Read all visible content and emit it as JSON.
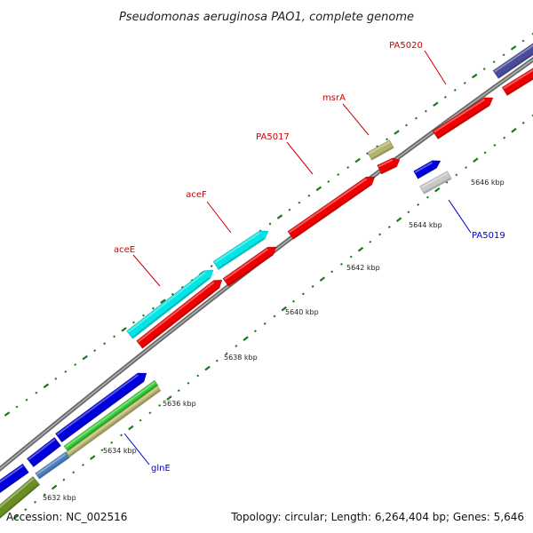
{
  "title": "Pseudomonas aeruginosa PAO1, complete genome",
  "accession": "Accession: NC_002516",
  "summary": "Topology: circular; Length: 6,264,404 bp; Genes: 5,646",
  "ticks": [
    "5632 kbp",
    "5634 kbp",
    "5636 kbp",
    "5638 kbp",
    "5640 kbp",
    "5642 kbp",
    "5644 kbp",
    "5646 kbp"
  ],
  "gene_labels": [
    {
      "name": "aceE",
      "color": "#cc0000"
    },
    {
      "name": "aceF",
      "color": "#cc0000"
    },
    {
      "name": "PA5017",
      "color": "#cc0000"
    },
    {
      "name": "msrA",
      "color": "#cc0000"
    },
    {
      "name": "PA5020",
      "color": "#cc0000"
    },
    {
      "name": "PA5019",
      "color": "#0000cc"
    },
    {
      "name": "glnE",
      "color": "#0000cc"
    }
  ],
  "colors": {
    "backbone": "#7a7a7a",
    "cds_red": "#ee0000",
    "cds_cyan": "#00e5e5",
    "cds_blue": "#0000dd",
    "cds_khaki": "#b5b36b",
    "cds_green": "#33cc33",
    "cds_olive": "#6b8e23",
    "cds_steel": "#4a7fbf",
    "cds_slate": "#4b4b9b",
    "cds_grey": "#c8c8c8",
    "tick_green": "#1a7a1a"
  }
}
